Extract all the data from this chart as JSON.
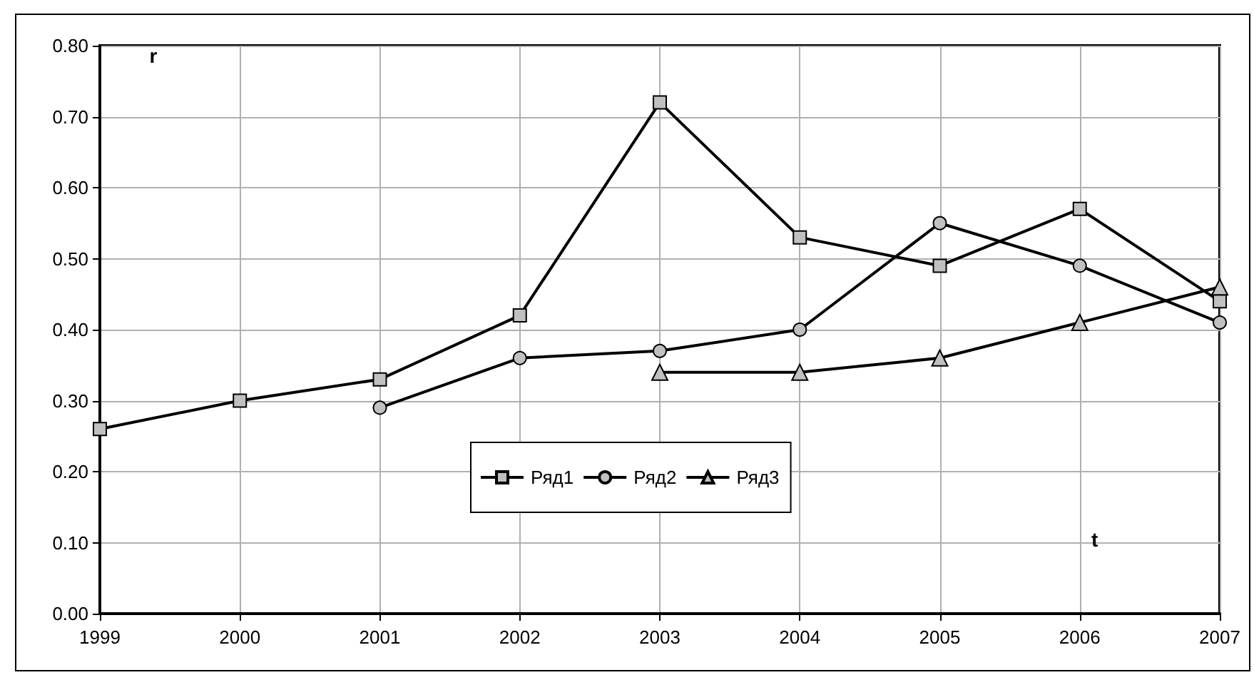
{
  "chart_data": {
    "type": "line",
    "xlabel": "t",
    "ylabel": "r",
    "x": [
      1999,
      2000,
      2001,
      2002,
      2003,
      2004,
      2005,
      2006,
      2007
    ],
    "xlim": [
      1999,
      2007
    ],
    "xticks": [
      1999,
      2000,
      2001,
      2002,
      2003,
      2004,
      2005,
      2006,
      2007
    ],
    "ylim": [
      0,
      0.8
    ],
    "yticks": [
      {
        "value": 0,
        "label": "0.00"
      },
      {
        "value": 0.1,
        "label": "0.10"
      },
      {
        "value": 0.2,
        "label": "0.20"
      },
      {
        "value": 0.3,
        "label": "0.30"
      },
      {
        "value": 0.4,
        "label": "0.40"
      },
      {
        "value": 0.5,
        "label": "0.50"
      },
      {
        "value": 0.6,
        "label": "0.60"
      },
      {
        "value": 0.7,
        "label": "0.70"
      },
      {
        "value": 0.8,
        "label": "0.80"
      }
    ],
    "grid": true,
    "legend": "center",
    "line_style": "solid",
    "series": [
      {
        "name": "Ряд1",
        "color": "#000000",
        "marker": "square",
        "values": [
          0.26,
          0.3,
          0.33,
          0.42,
          0.72,
          0.53,
          0.49,
          0.57,
          0.44
        ]
      },
      {
        "name": "Ряд2",
        "color": "#000000",
        "marker": "circle",
        "values": [
          null,
          null,
          0.29,
          0.36,
          0.37,
          0.4,
          0.55,
          0.49,
          0.41
        ]
      },
      {
        "name": "Ряд3",
        "color": "#000000",
        "marker": "triangle",
        "values": [
          null,
          null,
          null,
          null,
          0.34,
          0.34,
          0.36,
          0.41,
          0.46
        ]
      }
    ]
  }
}
